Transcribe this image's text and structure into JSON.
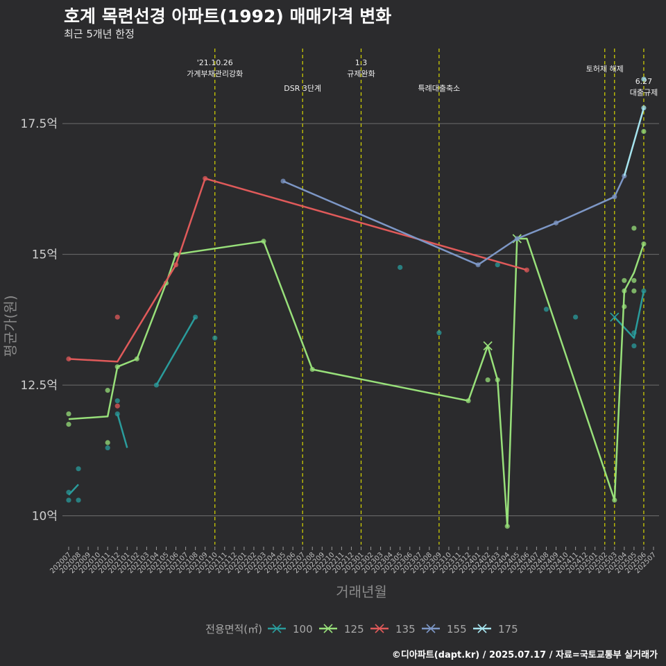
{
  "title": "호계 목련선경 아파트(1992) 매매가격 변화",
  "subtitle": "최근 5개년 한정",
  "credit": "©디아파트(dapt.kr) / 2025.07.17 / 자료=국토교통부 실거래가",
  "colors": {
    "background": "#2b2b2d",
    "grid": "#6e6e6e",
    "vline": "#d8d800"
  },
  "chart_data": {
    "type": "line",
    "title": "호계 목련선경 아파트(1992) 매매가격 변화",
    "xlabel": "거래년월",
    "ylabel": "평균가(원)",
    "ylim": [
      9.45,
      19.2
    ],
    "yticks": [
      10,
      12.5,
      15,
      17.5
    ],
    "ytick_labels": [
      "10억",
      "12.5억",
      "15억",
      "17.5억"
    ],
    "x_categories": [
      "202007",
      "202008",
      "202009",
      "202010",
      "202011",
      "202012",
      "202101",
      "202102",
      "202103",
      "202104",
      "202105",
      "202106",
      "202107",
      "202108",
      "202109",
      "202110",
      "202111",
      "202112",
      "202201",
      "202202",
      "202203",
      "202204",
      "202205",
      "202206",
      "202207",
      "202208",
      "202209",
      "202210",
      "202211",
      "202212",
      "202301",
      "202302",
      "202303",
      "202304",
      "202305",
      "202306",
      "202307",
      "202308",
      "202309",
      "202310",
      "202311",
      "202312",
      "202401",
      "202402",
      "202403",
      "202404",
      "202405",
      "202406",
      "202407",
      "202408",
      "202409",
      "202410",
      "202411",
      "202412",
      "202501",
      "202502",
      "202503",
      "202504",
      "202505",
      "202506",
      "202507"
    ],
    "legend_title": "전용면적(㎡)",
    "legend_position": "bottom",
    "series": [
      {
        "name": "100",
        "color": "#2a9c9c",
        "line": [
          [
            "202007",
            10.4
          ],
          [
            "202008",
            10.6
          ],
          [
            "202101",
            11.3
          ],
          [
            "202012",
            11.95
          ],
          [
            "202104",
            12.5
          ],
          [
            "202108",
            13.8
          ]
        ],
        "segments": [
          [
            0,
            1
          ],
          [
            2,
            3
          ],
          [
            4,
            5
          ]
        ],
        "points": [
          [
            "202007",
            10.3
          ],
          [
            "202007",
            10.45
          ],
          [
            "202008",
            10.3
          ],
          [
            "202008",
            10.9
          ],
          [
            "202011",
            11.3
          ],
          [
            "202012",
            12.2
          ],
          [
            "202012",
            11.95
          ],
          [
            "202104",
            12.5
          ],
          [
            "202108",
            13.8
          ],
          [
            "202110",
            13.4
          ],
          [
            "202305",
            14.75
          ],
          [
            "202309",
            13.5
          ],
          [
            "202403",
            14.8
          ],
          [
            "202408",
            13.95
          ],
          [
            "202411",
            13.8
          ],
          [
            "202505",
            13.5
          ],
          [
            "202505",
            13.25
          ],
          [
            "202506",
            14.3
          ]
        ],
        "markers": [
          [
            "202503",
            13.8
          ]
        ],
        "line2": [
          [
            "202503",
            13.8
          ],
          [
            "202505",
            13.4
          ],
          [
            "202506",
            14.3
          ]
        ]
      },
      {
        "name": "125",
        "color": "#98e07a",
        "line": [
          [
            "202007",
            11.85
          ],
          [
            "202011",
            11.9
          ],
          [
            "202012",
            12.85
          ],
          [
            "202102",
            13.0
          ],
          [
            "202105",
            14.45
          ],
          [
            "202106",
            15.0
          ],
          [
            "202203",
            15.25
          ],
          [
            "202208",
            12.8
          ],
          [
            "202312",
            12.2
          ],
          [
            "202402",
            13.25
          ],
          [
            "202403",
            12.6
          ],
          [
            "202404",
            9.8
          ],
          [
            "202405",
            15.3
          ],
          [
            "202406",
            15.3
          ],
          [
            "202503",
            10.3
          ],
          [
            "202504",
            14.3
          ],
          [
            "202505",
            14.65
          ],
          [
            "202506",
            15.2
          ]
        ],
        "points": [
          [
            "202007",
            11.95
          ],
          [
            "202007",
            11.75
          ],
          [
            "202011",
            12.4
          ],
          [
            "202011",
            11.4
          ],
          [
            "202012",
            12.85
          ],
          [
            "202102",
            13.0
          ],
          [
            "202105",
            14.45
          ],
          [
            "202106",
            15.0
          ],
          [
            "202203",
            15.25
          ],
          [
            "202208",
            12.8
          ],
          [
            "202312",
            12.2
          ],
          [
            "202402",
            12.6
          ],
          [
            "202403",
            12.6
          ],
          [
            "202404",
            9.8
          ],
          [
            "202503",
            10.3
          ],
          [
            "202504",
            14.5
          ],
          [
            "202504",
            14.0
          ],
          [
            "202504",
            14.3
          ],
          [
            "202505",
            15.5
          ],
          [
            "202505",
            14.5
          ],
          [
            "202505",
            14.3
          ],
          [
            "202506",
            17.35
          ],
          [
            "202506",
            15.2
          ]
        ],
        "markers": [
          [
            "202402",
            13.25
          ],
          [
            "202405",
            15.3
          ]
        ]
      },
      {
        "name": "135",
        "color": "#e05a5a",
        "line": [
          [
            "202007",
            13.0
          ],
          [
            "202012",
            12.95
          ],
          [
            "202106",
            14.8
          ],
          [
            "202109",
            16.45
          ],
          [
            "202406",
            14.7
          ]
        ],
        "points": [
          [
            "202007",
            13.0
          ],
          [
            "202012",
            13.8
          ],
          [
            "202012",
            12.1
          ],
          [
            "202106",
            14.8
          ],
          [
            "202109",
            16.45
          ],
          [
            "202406",
            14.7
          ]
        ],
        "markers": []
      },
      {
        "name": "155",
        "color": "#7d97c6",
        "line": [
          [
            "202205",
            16.4
          ],
          [
            "202401",
            14.8
          ],
          [
            "202405",
            15.3
          ],
          [
            "202409",
            15.6
          ],
          [
            "202503",
            16.1
          ],
          [
            "202504",
            16.5
          ]
        ],
        "points": [
          [
            "202205",
            16.4
          ],
          [
            "202401",
            14.8
          ],
          [
            "202405",
            15.3
          ],
          [
            "202409",
            15.6
          ],
          [
            "202503",
            16.1
          ],
          [
            "202504",
            16.5
          ]
        ],
        "markers": []
      },
      {
        "name": "175",
        "color": "#a6e4ee",
        "line": [
          [
            "202504",
            16.5
          ],
          [
            "202506",
            17.8
          ]
        ],
        "points": [
          [
            "202506",
            17.8
          ],
          [
            "202506",
            18.35
          ]
        ],
        "markers": []
      }
    ],
    "annotations": [
      {
        "x": "202110",
        "text_lines": [
          "'21.10.26",
          "가계부채관리강화"
        ],
        "row": 0
      },
      {
        "x": "202207",
        "text_lines": [
          "DSR 3단계"
        ],
        "row": 1
      },
      {
        "x": "202301",
        "text_lines": [
          "1.3",
          "규제완화"
        ],
        "row": 0
      },
      {
        "x": "202309",
        "text_lines": [
          "특례대출축소"
        ],
        "row": 1
      },
      {
        "x": "202502",
        "text_lines": [
          "토허제 해제"
        ],
        "row": 0.5
      },
      {
        "x": "202503",
        "text_lines": [],
        "row": 0
      },
      {
        "x": "202506",
        "text_lines": [
          "6.27",
          "대출규제"
        ],
        "row": 1
      }
    ]
  }
}
